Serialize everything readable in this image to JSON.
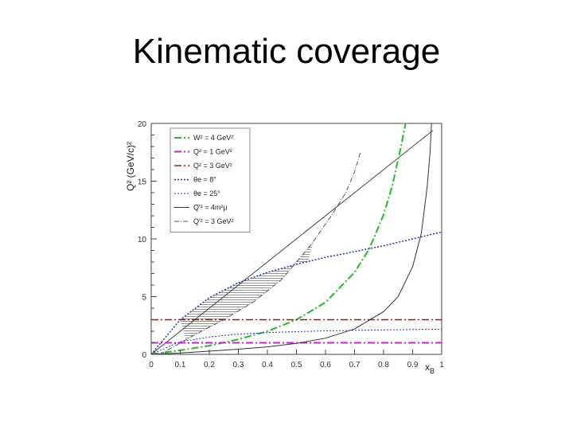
{
  "slide": {
    "title": "Kinematic coverage"
  },
  "chart_data": {
    "type": "line",
    "xlabel": "x",
    "xlabel_sub": "B",
    "ylabel": "Q² (GeV/c)²",
    "xlim": [
      0,
      1
    ],
    "ylim": [
      0,
      20
    ],
    "x_ticks": [
      0,
      0.1,
      0.2,
      0.3,
      0.4,
      0.5,
      0.6,
      0.7,
      0.8,
      0.9,
      1
    ],
    "x_tick_labels": [
      "0",
      "0.1",
      "0.2",
      "0.3",
      "0.4",
      "0.5",
      "0.6",
      "0.7",
      "0.8",
      "0.9",
      "1"
    ],
    "y_ticks": [
      0,
      5,
      10,
      15,
      20
    ],
    "y_tick_labels": [
      "0",
      "5",
      "10",
      "15",
      "20"
    ],
    "legend_position": "top-left",
    "series": [
      {
        "name": "W² = 4 GeV²",
        "color": "#22bb22",
        "dash": "9,3,2,3",
        "width": 2,
        "x": [
          0,
          0.1,
          0.2,
          0.3,
          0.4,
          0.5,
          0.6,
          0.7,
          0.75,
          0.8,
          0.83,
          0.86,
          0.88
        ],
        "y": [
          0,
          0.35,
          0.75,
          1.3,
          2.0,
          3.0,
          4.5,
          7.1,
          9.1,
          12.1,
          14.6,
          18.0,
          20.6
        ]
      },
      {
        "name": "Q² = 1 GeV²",
        "color": "#cc22cc",
        "dash": "9,3,2,3",
        "width": 2,
        "x": [
          0,
          1
        ],
        "y": [
          1,
          1
        ]
      },
      {
        "name": "Q² = 3 GeV²",
        "color": "#aa1111",
        "dash": "9,3,2,3",
        "width": 1.5,
        "x": [
          0,
          1
        ],
        "y": [
          3,
          3
        ]
      },
      {
        "name": "θe = 8°",
        "color": "#2233bb",
        "dash": "2,2",
        "width": 1.5,
        "x": [
          0,
          0.1,
          0.2,
          0.3,
          0.4,
          0.5,
          0.6,
          0.7,
          0.8,
          0.9,
          1
        ],
        "y": [
          0,
          3.0,
          4.9,
          6.2,
          7.1,
          7.8,
          8.4,
          8.9,
          9.4,
          10.0,
          10.6
        ]
      },
      {
        "name": "θe = 25°",
        "color": "#2233bb",
        "dash": "2,2",
        "width": 1,
        "x": [
          0,
          0.1,
          0.2,
          0.3,
          0.4,
          0.5,
          0.6,
          0.7,
          0.8,
          0.9,
          1
        ],
        "y": [
          0,
          1.1,
          1.5,
          1.75,
          1.88,
          1.97,
          2.03,
          2.08,
          2.12,
          2.15,
          2.18
        ]
      },
      {
        "name": "Q'² = 4m²μ",
        "color": "#333333",
        "dash": "",
        "width": 1,
        "x": [
          0,
          0.1,
          0.2,
          0.3,
          0.4,
          0.5,
          0.6,
          0.7,
          0.8,
          0.85,
          0.9,
          0.93,
          0.95,
          0.96,
          0.965
        ],
        "y": [
          0,
          0.12,
          0.28,
          0.45,
          0.65,
          0.95,
          1.4,
          2.2,
          3.7,
          5.0,
          7.6,
          10.5,
          14.5,
          17.5,
          20.0
        ]
      },
      {
        "name": "Q'² = 3 GeV²",
        "color": "#555555",
        "dash": "6,2,1,2",
        "width": 1,
        "x": [
          0.03,
          0.08,
          0.15,
          0.25,
          0.35,
          0.45,
          0.55,
          0.62,
          0.67,
          0.7,
          0.72
        ],
        "y": [
          0,
          0.7,
          1.7,
          3.0,
          4.5,
          6.5,
          9.5,
          12.0,
          14.0,
          15.8,
          17.5
        ]
      }
    ],
    "envelope_line": {
      "x": [
        0,
        0.97
      ],
      "y": [
        0,
        19.4
      ]
    }
  }
}
